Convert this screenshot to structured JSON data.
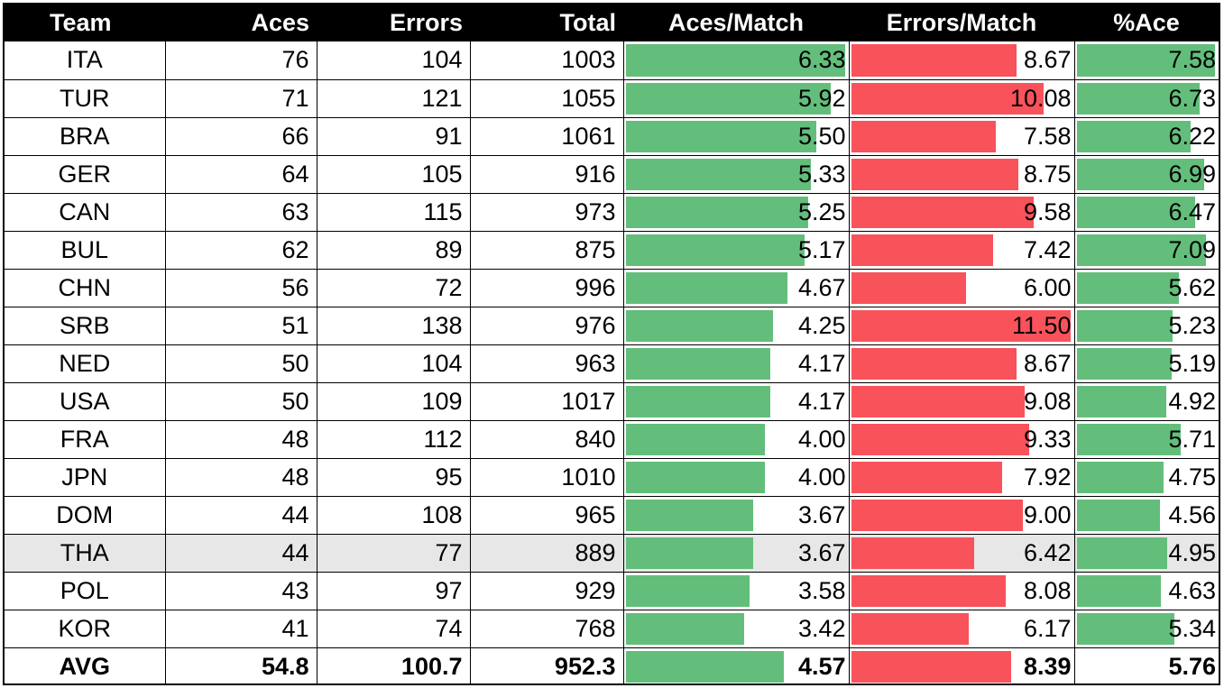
{
  "headers": {
    "team": "Team",
    "aces": "Aces",
    "errors": "Errors",
    "total": "Total",
    "aces_per_match": "Aces/Match",
    "errors_per_match": "Errors/Match",
    "pct_ace": "%Ace"
  },
  "colors": {
    "header_bg": "#000000",
    "header_text": "#ffffff",
    "bar_green": "#63be7b",
    "bar_red": "#f8525b",
    "shaded_row": "#e7e7e7"
  },
  "bar_scale": {
    "aces_per_match_max": 6.33,
    "errors_per_match_max": 11.5,
    "pct_ace_max": 7.58
  },
  "rows": [
    {
      "team": "ITA",
      "aces": "76",
      "errors": "104",
      "total": "1003",
      "apm": "6.33",
      "epm": "8.67",
      "pct": "7.58"
    },
    {
      "team": "TUR",
      "aces": "71",
      "errors": "121",
      "total": "1055",
      "apm": "5.92",
      "epm": "10.08",
      "pct": "6.73"
    },
    {
      "team": "BRA",
      "aces": "66",
      "errors": "91",
      "total": "1061",
      "apm": "5.50",
      "epm": "7.58",
      "pct": "6.22"
    },
    {
      "team": "GER",
      "aces": "64",
      "errors": "105",
      "total": "916",
      "apm": "5.33",
      "epm": "8.75",
      "pct": "6.99"
    },
    {
      "team": "CAN",
      "aces": "63",
      "errors": "115",
      "total": "973",
      "apm": "5.25",
      "epm": "9.58",
      "pct": "6.47"
    },
    {
      "team": "BUL",
      "aces": "62",
      "errors": "89",
      "total": "875",
      "apm": "5.17",
      "epm": "7.42",
      "pct": "7.09"
    },
    {
      "team": "CHN",
      "aces": "56",
      "errors": "72",
      "total": "996",
      "apm": "4.67",
      "epm": "6.00",
      "pct": "5.62"
    },
    {
      "team": "SRB",
      "aces": "51",
      "errors": "138",
      "total": "976",
      "apm": "4.25",
      "epm": "11.50",
      "pct": "5.23"
    },
    {
      "team": "NED",
      "aces": "50",
      "errors": "104",
      "total": "963",
      "apm": "4.17",
      "epm": "8.67",
      "pct": "5.19"
    },
    {
      "team": "USA",
      "aces": "50",
      "errors": "109",
      "total": "1017",
      "apm": "4.17",
      "epm": "9.08",
      "pct": "4.92"
    },
    {
      "team": "FRA",
      "aces": "48",
      "errors": "112",
      "total": "840",
      "apm": "4.00",
      "epm": "9.33",
      "pct": "5.71"
    },
    {
      "team": "JPN",
      "aces": "48",
      "errors": "95",
      "total": "1010",
      "apm": "4.00",
      "epm": "7.92",
      "pct": "4.75"
    },
    {
      "team": "DOM",
      "aces": "44",
      "errors": "108",
      "total": "965",
      "apm": "3.67",
      "epm": "9.00",
      "pct": "4.56"
    },
    {
      "team": "THA",
      "aces": "44",
      "errors": "77",
      "total": "889",
      "apm": "3.67",
      "epm": "6.42",
      "pct": "4.95",
      "shaded": true
    },
    {
      "team": "POL",
      "aces": "43",
      "errors": "97",
      "total": "929",
      "apm": "3.58",
      "epm": "8.08",
      "pct": "4.63"
    },
    {
      "team": "KOR",
      "aces": "41",
      "errors": "74",
      "total": "768",
      "apm": "3.42",
      "epm": "6.17",
      "pct": "5.34"
    }
  ],
  "avg": {
    "team": "AVG",
    "aces": "54.8",
    "errors": "100.7",
    "total": "952.3",
    "apm": "4.57",
    "epm": "8.39",
    "pct": "5.76"
  }
}
